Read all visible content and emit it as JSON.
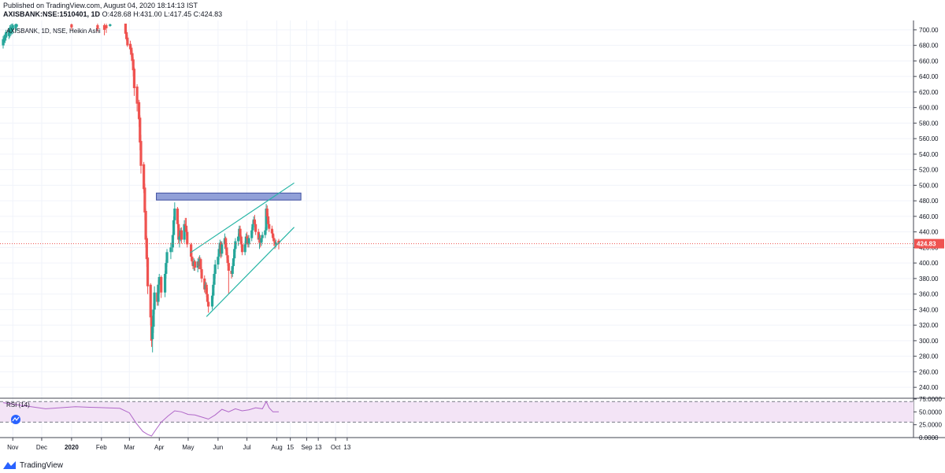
{
  "header": {
    "published": "Published on TradingView.com, August 04, 2020 18:14:13 IST",
    "symbol": "AXISBANK:NSE:1510401, 1D",
    "ohlc": "O:428.68 H:431.00 L:417.45 C:424.83"
  },
  "footer": {
    "brand": "TradingView"
  },
  "colors": {
    "up": "#26a69a",
    "down": "#ef5350",
    "trend": "#26b5a5",
    "zone_fill": "#7e8fd1",
    "zone_border": "#3f4fa0",
    "rsi_line": "#b067c8",
    "rsi_band": "#f3e4f6",
    "last_price": "#ef5350"
  },
  "chart_data": [
    {
      "type": "candlestick",
      "title": "AXISBANK, 1D, NSE, Heikin Ashi",
      "last_price_label": "424.83",
      "ylim": [
        228,
        708
      ],
      "y_ticks": [
        "700.00",
        "680.00",
        "660.00",
        "640.00",
        "620.00",
        "600.00",
        "580.00",
        "560.00",
        "540.00",
        "520.00",
        "500.00",
        "480.00",
        "460.00",
        "440.00",
        "420.00",
        "400.00",
        "380.00",
        "360.00",
        "340.00",
        "320.00",
        "300.00",
        "280.00",
        "260.00",
        "240.00"
      ],
      "x_ticks": [
        "Nov",
        "Dec",
        "2020",
        "Feb",
        "Mar",
        "Apr",
        "May",
        "Jun",
        "Jul",
        "Aug",
        "15",
        "Sep",
        "13",
        "Oct",
        "13"
      ],
      "candles": [
        {
          "d": "2019-10-22",
          "o": 680,
          "h": 692,
          "l": 676,
          "c": 688
        },
        {
          "d": "2019-10-23",
          "o": 684,
          "h": 694,
          "l": 680,
          "c": 690
        },
        {
          "d": "2019-10-24",
          "o": 687,
          "h": 696,
          "l": 683,
          "c": 693
        },
        {
          "d": "2019-10-25",
          "o": 690,
          "h": 700,
          "l": 686,
          "c": 697
        },
        {
          "d": "2019-10-28",
          "o": 692,
          "h": 703,
          "l": 688,
          "c": 700
        },
        {
          "d": "2019-10-29",
          "o": 695,
          "h": 706,
          "l": 690,
          "c": 702
        },
        {
          "d": "2019-10-30",
          "o": 697,
          "h": 707,
          "l": 692,
          "c": 704
        },
        {
          "d": "2019-10-31",
          "o": 698,
          "h": 708,
          "l": 694,
          "c": 704
        },
        {
          "d": "2019-11-01",
          "o": 700,
          "h": 708,
          "l": 695,
          "c": 706
        },
        {
          "d": "2019-11-04",
          "o": 702,
          "h": 708,
          "l": 697,
          "c": 707
        },
        {
          "d": "2019-11-05",
          "o": 704,
          "h": 708,
          "l": 699,
          "c": 707
        },
        {
          "d": "2020-01-01",
          "o": 707,
          "h": 708,
          "l": 700,
          "c": 703
        },
        {
          "d": "2020-01-28",
          "o": 706,
          "h": 708,
          "l": 698,
          "c": 701
        },
        {
          "d": "2020-02-04",
          "o": 706,
          "h": 708,
          "l": 693,
          "c": 700
        },
        {
          "d": "2020-02-06",
          "o": 706,
          "h": 708,
          "l": 696,
          "c": 702
        },
        {
          "d": "2020-02-10",
          "o": 705,
          "h": 708,
          "l": 704,
          "c": 707
        },
        {
          "d": "2020-02-26",
          "o": 708,
          "h": 708,
          "l": 694,
          "c": 695
        },
        {
          "d": "2020-02-27",
          "o": 697,
          "h": 700,
          "l": 686,
          "c": 688
        },
        {
          "d": "2020-02-28",
          "o": 690,
          "h": 693,
          "l": 678,
          "c": 680
        },
        {
          "d": "2020-03-02",
          "o": 682,
          "h": 686,
          "l": 672,
          "c": 675
        },
        {
          "d": "2020-03-03",
          "o": 677,
          "h": 680,
          "l": 665,
          "c": 668
        },
        {
          "d": "2020-03-04",
          "o": 670,
          "h": 674,
          "l": 655,
          "c": 660
        },
        {
          "d": "2020-03-05",
          "o": 662,
          "h": 665,
          "l": 640,
          "c": 648
        },
        {
          "d": "2020-03-06",
          "o": 650,
          "h": 652,
          "l": 615,
          "c": 625
        },
        {
          "d": "2020-03-09",
          "o": 627,
          "h": 630,
          "l": 595,
          "c": 605
        },
        {
          "d": "2020-03-11",
          "o": 607,
          "h": 610,
          "l": 575,
          "c": 585
        },
        {
          "d": "2020-03-12",
          "o": 587,
          "h": 590,
          "l": 545,
          "c": 555
        },
        {
          "d": "2020-03-13",
          "o": 557,
          "h": 565,
          "l": 515,
          "c": 525
        },
        {
          "d": "2020-03-16",
          "o": 527,
          "h": 530,
          "l": 490,
          "c": 495
        },
        {
          "d": "2020-03-17",
          "o": 497,
          "h": 502,
          "l": 455,
          "c": 465
        },
        {
          "d": "2020-03-18",
          "o": 467,
          "h": 470,
          "l": 420,
          "c": 430
        },
        {
          "d": "2020-03-19",
          "o": 432,
          "h": 435,
          "l": 395,
          "c": 405
        },
        {
          "d": "2020-03-20",
          "o": 407,
          "h": 410,
          "l": 360,
          "c": 370
        },
        {
          "d": "2020-03-23",
          "o": 372,
          "h": 374,
          "l": 320,
          "c": 330
        },
        {
          "d": "2020-03-24",
          "o": 332,
          "h": 340,
          "l": 292,
          "c": 300
        },
        {
          "d": "2020-03-25",
          "o": 302,
          "h": 326,
          "l": 285,
          "c": 318
        },
        {
          "d": "2020-03-26",
          "o": 318,
          "h": 348,
          "l": 310,
          "c": 340
        },
        {
          "d": "2020-03-27",
          "o": 340,
          "h": 370,
          "l": 334,
          "c": 362
        },
        {
          "d": "2020-03-30",
          "o": 362,
          "h": 372,
          "l": 345,
          "c": 350
        },
        {
          "d": "2020-03-31",
          "o": 350,
          "h": 378,
          "l": 345,
          "c": 372
        },
        {
          "d": "2020-04-01",
          "o": 372,
          "h": 386,
          "l": 360,
          "c": 382
        },
        {
          "d": "2020-04-03",
          "o": 382,
          "h": 384,
          "l": 355,
          "c": 362
        },
        {
          "d": "2020-04-07",
          "o": 362,
          "h": 390,
          "l": 356,
          "c": 386
        },
        {
          "d": "2020-04-08",
          "o": 386,
          "h": 404,
          "l": 380,
          "c": 400
        },
        {
          "d": "2020-04-09",
          "o": 400,
          "h": 418,
          "l": 395,
          "c": 414
        },
        {
          "d": "2020-04-13",
          "o": 414,
          "h": 426,
          "l": 405,
          "c": 420
        },
        {
          "d": "2020-04-15",
          "o": 420,
          "h": 440,
          "l": 414,
          "c": 436
        },
        {
          "d": "2020-04-16",
          "o": 436,
          "h": 460,
          "l": 430,
          "c": 455
        },
        {
          "d": "2020-04-17",
          "o": 455,
          "h": 478,
          "l": 450,
          "c": 470
        },
        {
          "d": "2020-04-20",
          "o": 470,
          "h": 472,
          "l": 445,
          "c": 450
        },
        {
          "d": "2020-04-21",
          "o": 450,
          "h": 455,
          "l": 425,
          "c": 430
        },
        {
          "d": "2020-04-22",
          "o": 430,
          "h": 440,
          "l": 420,
          "c": 434
        },
        {
          "d": "2020-04-23",
          "o": 434,
          "h": 445,
          "l": 428,
          "c": 442
        },
        {
          "d": "2020-04-24",
          "o": 442,
          "h": 446,
          "l": 425,
          "c": 430
        },
        {
          "d": "2020-04-27",
          "o": 430,
          "h": 455,
          "l": 426,
          "c": 450
        },
        {
          "d": "2020-04-28",
          "o": 450,
          "h": 458,
          "l": 440,
          "c": 448
        },
        {
          "d": "2020-04-29",
          "o": 448,
          "h": 458,
          "l": 435,
          "c": 440
        },
        {
          "d": "2020-04-30",
          "o": 440,
          "h": 443,
          "l": 420,
          "c": 424
        },
        {
          "d": "2020-05-04",
          "o": 424,
          "h": 426,
          "l": 404,
          "c": 408
        },
        {
          "d": "2020-05-05",
          "o": 408,
          "h": 414,
          "l": 398,
          "c": 402
        },
        {
          "d": "2020-05-06",
          "o": 402,
          "h": 408,
          "l": 392,
          "c": 396
        },
        {
          "d": "2020-05-07",
          "o": 396,
          "h": 406,
          "l": 390,
          "c": 402
        },
        {
          "d": "2020-05-08",
          "o": 402,
          "h": 404,
          "l": 390,
          "c": 394
        },
        {
          "d": "2020-05-11",
          "o": 394,
          "h": 406,
          "l": 388,
          "c": 402
        },
        {
          "d": "2020-05-12",
          "o": 402,
          "h": 408,
          "l": 392,
          "c": 396
        },
        {
          "d": "2020-05-13",
          "o": 396,
          "h": 410,
          "l": 392,
          "c": 405
        },
        {
          "d": "2020-05-14",
          "o": 405,
          "h": 407,
          "l": 388,
          "c": 392
        },
        {
          "d": "2020-05-15",
          "o": 392,
          "h": 395,
          "l": 375,
          "c": 380
        },
        {
          "d": "2020-05-18",
          "o": 380,
          "h": 384,
          "l": 362,
          "c": 366
        },
        {
          "d": "2020-05-19",
          "o": 366,
          "h": 376,
          "l": 360,
          "c": 372
        },
        {
          "d": "2020-05-20",
          "o": 372,
          "h": 375,
          "l": 356,
          "c": 360
        },
        {
          "d": "2020-05-21",
          "o": 360,
          "h": 368,
          "l": 344,
          "c": 350
        },
        {
          "d": "2020-05-22",
          "o": 350,
          "h": 356,
          "l": 336,
          "c": 344
        },
        {
          "d": "2020-05-26",
          "o": 344,
          "h": 362,
          "l": 340,
          "c": 358
        },
        {
          "d": "2020-05-27",
          "o": 358,
          "h": 376,
          "l": 354,
          "c": 372
        },
        {
          "d": "2020-05-28",
          "o": 372,
          "h": 390,
          "l": 368,
          "c": 386
        },
        {
          "d": "2020-05-29",
          "o": 386,
          "h": 404,
          "l": 380,
          "c": 398
        },
        {
          "d": "2020-06-01",
          "o": 398,
          "h": 412,
          "l": 392,
          "c": 408
        },
        {
          "d": "2020-06-02",
          "o": 408,
          "h": 422,
          "l": 404,
          "c": 418
        },
        {
          "d": "2020-06-03",
          "o": 418,
          "h": 430,
          "l": 412,
          "c": 426
        },
        {
          "d": "2020-06-04",
          "o": 426,
          "h": 428,
          "l": 406,
          "c": 412
        },
        {
          "d": "2020-06-05",
          "o": 412,
          "h": 428,
          "l": 408,
          "c": 424
        },
        {
          "d": "2020-06-08",
          "o": 424,
          "h": 438,
          "l": 418,
          "c": 432
        },
        {
          "d": "2020-06-09",
          "o": 432,
          "h": 434,
          "l": 416,
          "c": 420
        },
        {
          "d": "2020-06-10",
          "o": 420,
          "h": 424,
          "l": 406,
          "c": 410
        },
        {
          "d": "2020-06-11",
          "o": 410,
          "h": 414,
          "l": 396,
          "c": 400
        },
        {
          "d": "2020-06-12",
          "o": 400,
          "h": 404,
          "l": 360,
          "c": 390
        },
        {
          "d": "2020-06-15",
          "o": 390,
          "h": 394,
          "l": 380,
          "c": 386
        },
        {
          "d": "2020-06-16",
          "o": 386,
          "h": 400,
          "l": 382,
          "c": 396
        },
        {
          "d": "2020-06-17",
          "o": 396,
          "h": 410,
          "l": 392,
          "c": 406
        },
        {
          "d": "2020-06-18",
          "o": 406,
          "h": 422,
          "l": 402,
          "c": 418
        },
        {
          "d": "2020-06-19",
          "o": 418,
          "h": 432,
          "l": 414,
          "c": 428
        },
        {
          "d": "2020-06-22",
          "o": 428,
          "h": 438,
          "l": 422,
          "c": 434
        },
        {
          "d": "2020-06-23",
          "o": 434,
          "h": 448,
          "l": 428,
          "c": 444
        },
        {
          "d": "2020-06-24",
          "o": 444,
          "h": 448,
          "l": 430,
          "c": 434
        },
        {
          "d": "2020-06-25",
          "o": 434,
          "h": 436,
          "l": 420,
          "c": 424
        },
        {
          "d": "2020-06-26",
          "o": 424,
          "h": 428,
          "l": 410,
          "c": 414
        },
        {
          "d": "2020-06-29",
          "o": 414,
          "h": 428,
          "l": 410,
          "c": 424
        },
        {
          "d": "2020-06-30",
          "o": 424,
          "h": 438,
          "l": 420,
          "c": 434
        },
        {
          "d": "2020-07-01",
          "o": 434,
          "h": 440,
          "l": 428,
          "c": 432
        },
        {
          "d": "2020-07-02",
          "o": 432,
          "h": 436,
          "l": 420,
          "c": 424
        },
        {
          "d": "2020-07-03",
          "o": 424,
          "h": 436,
          "l": 420,
          "c": 432
        },
        {
          "d": "2020-07-06",
          "o": 432,
          "h": 446,
          "l": 428,
          "c": 442
        },
        {
          "d": "2020-07-07",
          "o": 442,
          "h": 454,
          "l": 438,
          "c": 450
        },
        {
          "d": "2020-07-08",
          "o": 450,
          "h": 460,
          "l": 446,
          "c": 456
        },
        {
          "d": "2020-07-09",
          "o": 456,
          "h": 462,
          "l": 446,
          "c": 450
        },
        {
          "d": "2020-07-10",
          "o": 450,
          "h": 454,
          "l": 436,
          "c": 440
        },
        {
          "d": "2020-07-13",
          "o": 440,
          "h": 444,
          "l": 426,
          "c": 430
        },
        {
          "d": "2020-07-14",
          "o": 430,
          "h": 438,
          "l": 418,
          "c": 432
        },
        {
          "d": "2020-07-15",
          "o": 432,
          "h": 436,
          "l": 420,
          "c": 426
        },
        {
          "d": "2020-07-16",
          "o": 426,
          "h": 436,
          "l": 422,
          "c": 432
        },
        {
          "d": "2020-07-17",
          "o": 432,
          "h": 440,
          "l": 428,
          "c": 436
        },
        {
          "d": "2020-07-20",
          "o": 436,
          "h": 446,
          "l": 432,
          "c": 442
        },
        {
          "d": "2020-07-21",
          "o": 442,
          "h": 476,
          "l": 438,
          "c": 470
        },
        {
          "d": "2020-07-22",
          "o": 470,
          "h": 474,
          "l": 456,
          "c": 460
        },
        {
          "d": "2020-07-23",
          "o": 460,
          "h": 464,
          "l": 446,
          "c": 450
        },
        {
          "d": "2020-07-24",
          "o": 450,
          "h": 454,
          "l": 440,
          "c": 444
        },
        {
          "d": "2020-07-27",
          "o": 444,
          "h": 448,
          "l": 434,
          "c": 438
        },
        {
          "d": "2020-07-28",
          "o": 438,
          "h": 442,
          "l": 428,
          "c": 432
        },
        {
          "d": "2020-07-29",
          "o": 432,
          "h": 436,
          "l": 422,
          "c": 428
        },
        {
          "d": "2020-07-30",
          "o": 428,
          "h": 432,
          "l": 418,
          "c": 424
        },
        {
          "d": "2020-07-31",
          "o": 424,
          "h": 430,
          "l": 420,
          "c": 426
        },
        {
          "d": "2020-08-03",
          "o": 428.68,
          "h": 431.0,
          "l": 417.45,
          "c": 424.83
        }
      ]
    },
    {
      "type": "line",
      "title": "RSI (14)",
      "ylim": [
        0,
        75
      ],
      "y_ticks": [
        "75.0000",
        "50.0000",
        "25.0000",
        "0.0000"
      ],
      "band": [
        30,
        70
      ],
      "series": [
        {
          "x": [
            "2019-10-22",
            "2019-11-05",
            "2019-11-20",
            "2019-12-05",
            "2019-12-20",
            "2020-01-05",
            "2020-01-20",
            "2020-02-05",
            "2020-02-20",
            "2020-03-01",
            "2020-03-08",
            "2020-03-15",
            "2020-03-20",
            "2020-03-24",
            "2020-03-28",
            "2020-04-03",
            "2020-04-10",
            "2020-04-17",
            "2020-04-24",
            "2020-05-01",
            "2020-05-08",
            "2020-05-15",
            "2020-05-22",
            "2020-05-29",
            "2020-06-05",
            "2020-06-12",
            "2020-06-19",
            "2020-06-26",
            "2020-07-03",
            "2020-07-10",
            "2020-07-17",
            "2020-07-21",
            "2020-07-24",
            "2020-07-28",
            "2020-08-03"
          ],
          "y": [
            68,
            64,
            60,
            56,
            58,
            60,
            59,
            58,
            57,
            48,
            28,
            12,
            6,
            3,
            14,
            30,
            42,
            52,
            50,
            45,
            44,
            40,
            36,
            44,
            55,
            50,
            56,
            52,
            54,
            58,
            56,
            70,
            58,
            50,
            50
          ]
        }
      ]
    }
  ]
}
